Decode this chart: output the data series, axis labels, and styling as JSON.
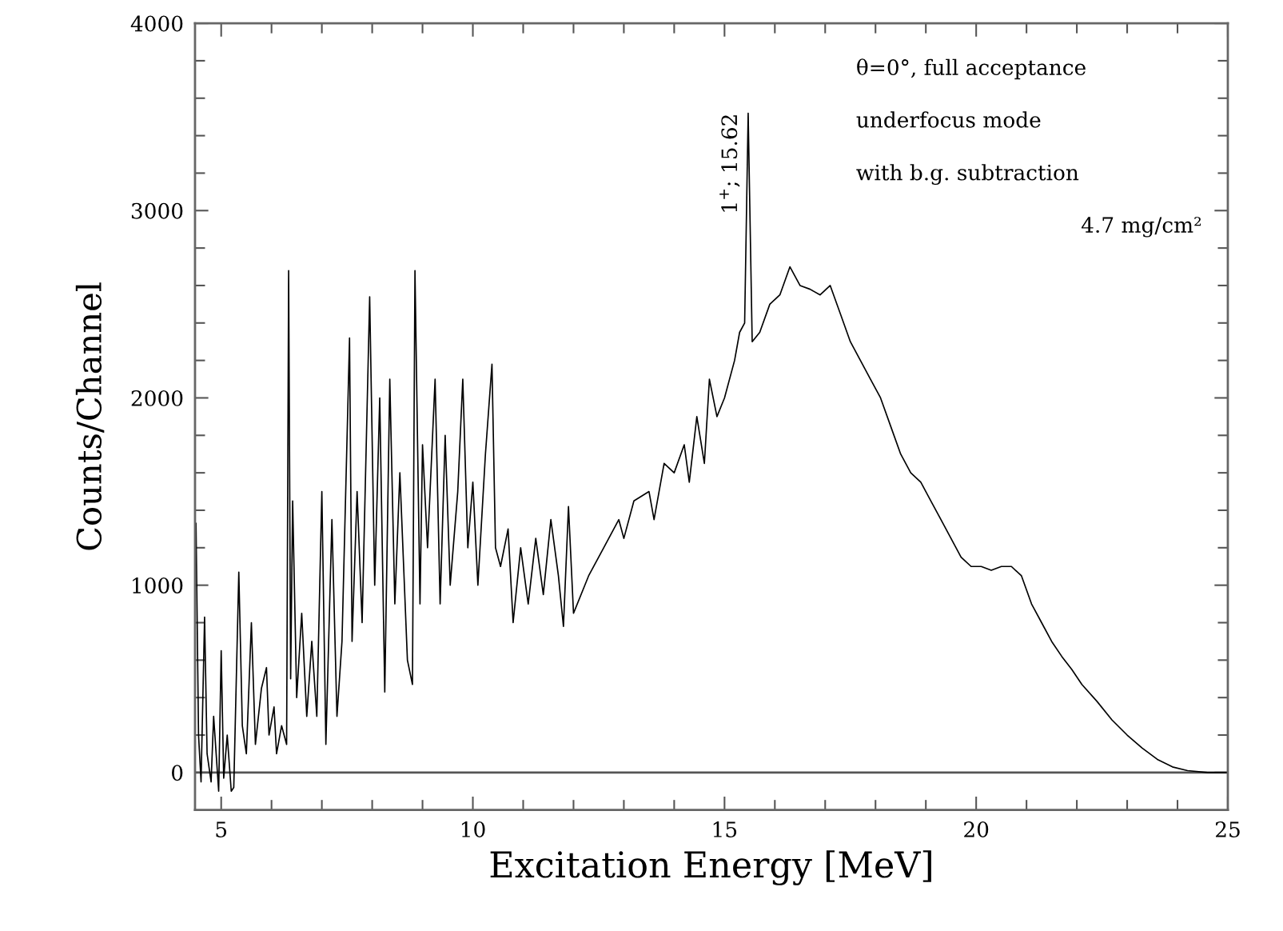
{
  "chart_data": {
    "type": "line",
    "xlabel": "Excitation Energy [MeV]",
    "ylabel": "Counts/Channel",
    "annotations": [
      {
        "text": "1$^{+}$; 15.62",
        "x": 15.47,
        "y": 3520
      },
      "θ=0°, full acceptance",
      "underfocus mode",
      "with b.g. subtraction",
      "4.7 mg/cm²"
    ],
    "xlim": [
      4.48,
      25
    ],
    "ylim": [
      -200,
      4000
    ],
    "xticks": [
      5,
      {
        "value": 6,
        "label": null
      },
      {
        "value": 7,
        "label": null
      },
      {
        "value": 8,
        "label": null
      },
      {
        "value": 9,
        "label": null
      },
      10,
      {
        "value": 11,
        "label": null
      },
      {
        "value": 12,
        "label": null
      },
      {
        "value": 13,
        "label": null
      },
      {
        "value": 14,
        "label": null
      },
      15,
      {
        "value": 16,
        "label": null
      },
      {
        "value": 17,
        "label": null
      },
      {
        "value": 18,
        "label": null
      },
      {
        "value": 19,
        "label": null
      },
      20,
      {
        "value": 21,
        "label": null
      },
      {
        "value": 22,
        "label": null
      },
      {
        "value": 23,
        "label": null
      },
      {
        "value": 24,
        "label": null
      },
      25
    ],
    "yticks": [
      0,
      {
        "value": 200,
        "label": null
      },
      {
        "value": 400,
        "label": null
      },
      {
        "value": 600,
        "label": null
      },
      {
        "value": 800,
        "label": null
      },
      1000,
      {
        "value": 1200,
        "label": null
      },
      {
        "value": 1400,
        "label": null
      },
      {
        "value": 1600,
        "label": null
      },
      {
        "value": 1800,
        "label": null
      },
      2000,
      {
        "value": 2200,
        "label": null
      },
      {
        "value": 2400,
        "label": null
      },
      {
        "value": 2600,
        "label": null
      },
      {
        "value": 2800,
        "label": null
      },
      3000,
      {
        "value": 3200,
        "label": null
      },
      {
        "value": 3400,
        "label": null
      },
      {
        "value": 3600,
        "label": null
      },
      {
        "value": 3800,
        "label": null
      },
      4000
    ],
    "ref_lines": [
      {
        "axis": "y",
        "value": 0,
        "color": "#555555"
      }
    ],
    "grid": false,
    "legend": false,
    "series": [
      {
        "color": "#000000",
        "x": [
          4.5,
          4.55,
          4.6,
          4.67,
          4.72,
          4.8,
          4.85,
          4.95,
          5.0,
          5.05,
          5.12,
          5.2,
          5.25,
          5.35,
          5.42,
          5.5,
          5.6,
          5.68,
          5.8,
          5.9,
          5.95,
          6.05,
          6.1,
          6.2,
          6.3,
          6.34,
          6.38,
          6.42,
          6.5,
          6.6,
          6.7,
          6.8,
          6.9,
          7.0,
          7.08,
          7.2,
          7.3,
          7.4,
          7.55,
          7.6,
          7.7,
          7.8,
          7.95,
          8.05,
          8.15,
          8.25,
          8.35,
          8.45,
          8.55,
          8.7,
          8.8,
          8.85,
          8.95,
          9.0,
          9.1,
          9.25,
          9.35,
          9.45,
          9.55,
          9.7,
          9.8,
          9.9,
          10.0,
          10.1,
          10.25,
          10.38,
          10.45,
          10.55,
          10.7,
          10.8,
          10.95,
          11.1,
          11.25,
          11.4,
          11.55,
          11.7,
          11.8,
          11.9,
          12.0,
          12.3,
          12.6,
          12.9,
          13.0,
          13.2,
          13.5,
          13.6,
          13.8,
          14.0,
          14.2,
          14.3,
          14.45,
          14.6,
          14.7,
          14.85,
          15.0,
          15.2,
          15.3,
          15.4,
          15.47,
          15.55,
          15.7,
          15.9,
          16.1,
          16.3,
          16.5,
          16.7,
          16.9,
          17.1,
          17.3,
          17.5,
          17.7,
          17.9,
          18.1,
          18.3,
          18.5,
          18.7,
          18.9,
          19.1,
          19.3,
          19.5,
          19.7,
          19.9,
          20.1,
          20.3,
          20.5,
          20.7,
          20.9,
          21.1,
          21.3,
          21.5,
          21.7,
          21.9,
          22.1,
          22.4,
          22.7,
          23.0,
          23.3,
          23.6,
          23.9,
          24.2,
          24.6,
          25.0
        ],
        "values": [
          1330,
          200,
          -50,
          830,
          100,
          -50,
          300,
          -100,
          650,
          -30,
          200,
          -100,
          -80,
          1070,
          250,
          100,
          800,
          150,
          450,
          560,
          200,
          350,
          100,
          250,
          150,
          2680,
          500,
          1450,
          400,
          850,
          300,
          700,
          300,
          1500,
          150,
          1350,
          300,
          700,
          2320,
          700,
          1500,
          800,
          2540,
          1000,
          2000,
          430,
          2100,
          900,
          1600,
          600,
          470,
          2680,
          900,
          1750,
          1200,
          2100,
          900,
          1800,
          1000,
          1500,
          2100,
          1200,
          1550,
          1000,
          1700,
          2180,
          1200,
          1100,
          1300,
          800,
          1200,
          900,
          1250,
          950,
          1350,
          1050,
          780,
          1420,
          850,
          1050,
          1200,
          1350,
          1250,
          1450,
          1500,
          1350,
          1650,
          1600,
          1750,
          1550,
          1900,
          1650,
          2100,
          1900,
          2000,
          2200,
          2350,
          2400,
          3520,
          2300,
          2350,
          2500,
          2550,
          2700,
          2600,
          2580,
          2550,
          2600,
          2450,
          2300,
          2200,
          2100,
          2000,
          1850,
          1700,
          1600,
          1550,
          1450,
          1350,
          1250,
          1150,
          1100,
          1100,
          1080,
          1100,
          1100,
          1050,
          900,
          800,
          700,
          620,
          550,
          470,
          380,
          280,
          200,
          130,
          70,
          30,
          10,
          0,
          0
        ]
      }
    ]
  }
}
